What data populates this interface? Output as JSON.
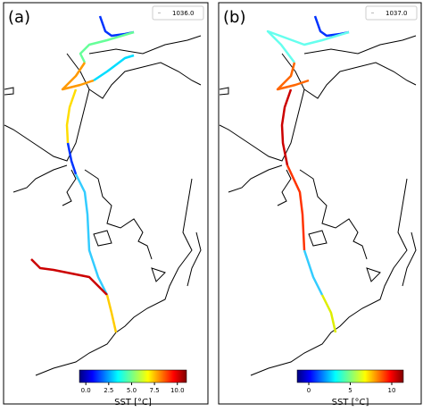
{
  "panels": [
    {
      "label": "(a)",
      "legend": "1036.0",
      "colorbar": {
        "label": "SST [°C]",
        "lim": [
          -0.7,
          11
        ],
        "ticks": [
          {
            "value": 0,
            "label": "0.0"
          },
          2.5,
          {
            "value": 5,
            "label": "5.0"
          },
          7.5,
          {
            "value": 10,
            "label": "10.0"
          }
        ]
      }
    },
    {
      "label": "(b)",
      "legend": "1037.0",
      "colorbar": {
        "label": "SST [°C]",
        "lim": [
          -1.4,
          11.4
        ],
        "ticks": [
          0,
          5,
          10
        ]
      }
    }
  ]
}
